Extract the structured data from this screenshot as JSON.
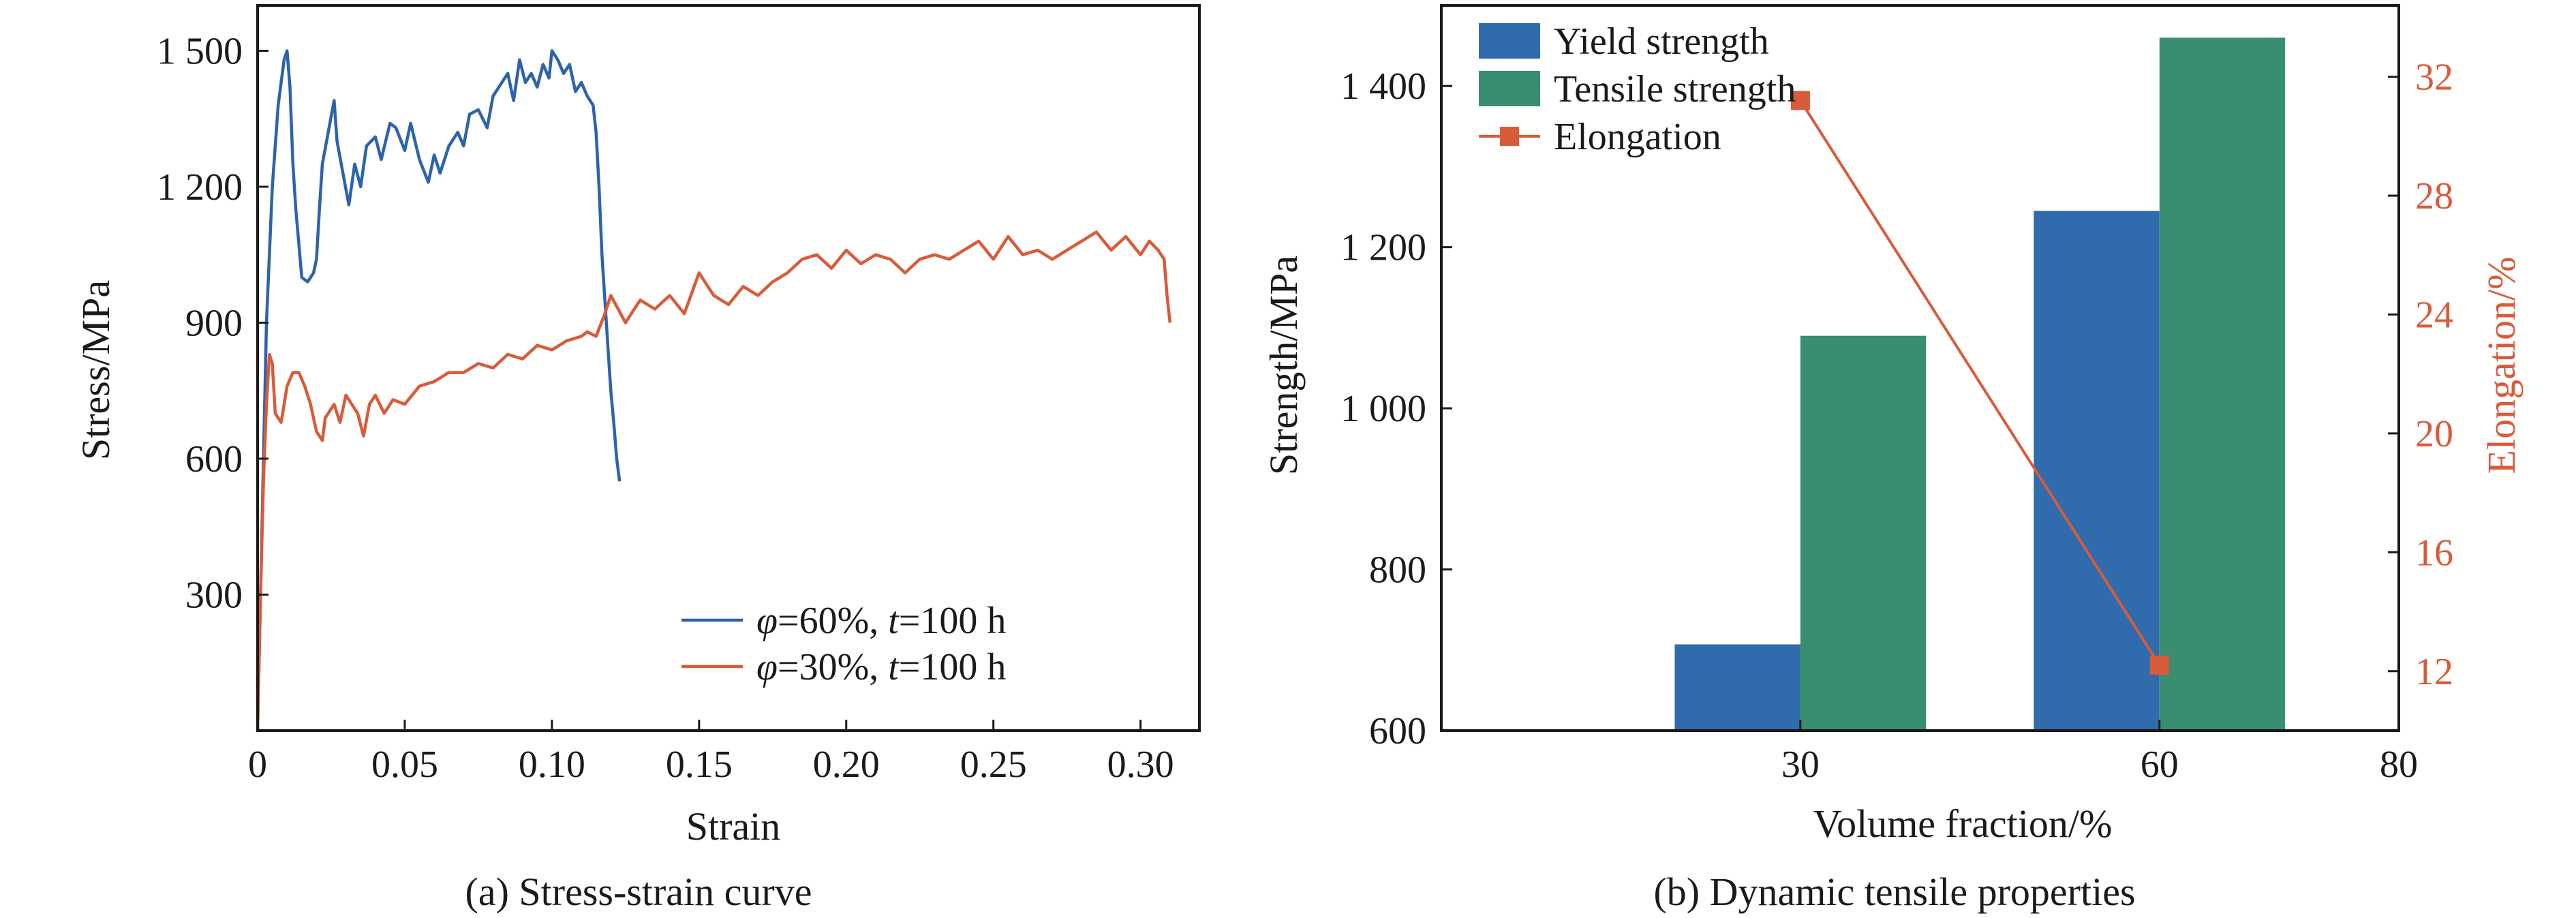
{
  "figure": {
    "background": "#ffffff",
    "axis_color": "#1a1a1a"
  },
  "chart_data": [
    {
      "type": "line",
      "caption": "(a) Stress-strain curve",
      "xlabel": "Strain",
      "ylabel": "Stress/MPa",
      "xlim": [
        0,
        0.32
      ],
      "ylim": [
        0,
        1600
      ],
      "xticks": [
        {
          "value": 0,
          "label": "0"
        },
        {
          "value": 0.05,
          "label": "0.05"
        },
        {
          "value": 0.1,
          "label": "0.10"
        },
        {
          "value": 0.15,
          "label": "0.15"
        },
        {
          "value": 0.2,
          "label": "0.20"
        },
        {
          "value": 0.25,
          "label": "0.25"
        },
        {
          "value": 0.3,
          "label": "0.30"
        }
      ],
      "yticks": [
        {
          "value": 300,
          "label": "300"
        },
        {
          "value": 600,
          "label": "600"
        },
        {
          "value": 900,
          "label": "900"
        },
        {
          "value": 1200,
          "label": "1 200"
        },
        {
          "value": 1500,
          "label": "1 500"
        }
      ],
      "grid": false,
      "legend_position": "bottom-right",
      "series": [
        {
          "legend_label": "φ=60%, t=100 h",
          "legend_parts": [
            {
              "text": "φ",
              "italic": true
            },
            {
              "text": "=60%, ",
              "italic": false
            },
            {
              "text": "t",
              "italic": true
            },
            {
              "text": "=100 h",
              "italic": false
            }
          ],
          "color": "#2e63aa",
          "x": [
            0,
            0.001,
            0.002,
            0.003,
            0.005,
            0.007,
            0.009,
            0.01,
            0.011,
            0.012,
            0.013,
            0.015,
            0.017,
            0.019,
            0.02,
            0.021,
            0.022,
            0.024,
            0.026,
            0.027,
            0.029,
            0.031,
            0.033,
            0.035,
            0.037,
            0.04,
            0.042,
            0.045,
            0.047,
            0.05,
            0.052,
            0.055,
            0.058,
            0.06,
            0.062,
            0.065,
            0.068,
            0.07,
            0.072,
            0.075,
            0.078,
            0.08,
            0.082,
            0.085,
            0.087,
            0.089,
            0.091,
            0.093,
            0.095,
            0.097,
            0.099,
            0.1,
            0.102,
            0.104,
            0.106,
            0.108,
            0.11,
            0.112,
            0.114,
            0.115,
            0.116,
            0.117,
            0.118,
            0.119,
            0.12,
            0.121,
            0.122,
            0.123
          ],
          "y": [
            0,
            300,
            600,
            900,
            1200,
            1380,
            1480,
            1500,
            1420,
            1250,
            1150,
            1000,
            990,
            1010,
            1040,
            1150,
            1250,
            1320,
            1390,
            1300,
            1230,
            1160,
            1250,
            1200,
            1290,
            1310,
            1260,
            1340,
            1330,
            1280,
            1340,
            1260,
            1210,
            1270,
            1230,
            1290,
            1320,
            1290,
            1360,
            1370,
            1330,
            1400,
            1420,
            1450,
            1390,
            1480,
            1430,
            1450,
            1420,
            1470,
            1440,
            1500,
            1480,
            1450,
            1470,
            1410,
            1430,
            1400,
            1380,
            1320,
            1200,
            1050,
            950,
            850,
            750,
            680,
            600,
            550
          ]
        },
        {
          "legend_label": "φ=30%, t=100 h",
          "legend_parts": [
            {
              "text": "φ",
              "italic": true
            },
            {
              "text": "=30%, ",
              "italic": false
            },
            {
              "text": "t",
              "italic": true
            },
            {
              "text": "=100 h",
              "italic": false
            }
          ],
          "color": "#d85b3a",
          "x": [
            0,
            0.001,
            0.002,
            0.003,
            0.004,
            0.005,
            0.006,
            0.008,
            0.01,
            0.012,
            0.014,
            0.016,
            0.018,
            0.02,
            0.022,
            0.023,
            0.024,
            0.026,
            0.028,
            0.03,
            0.032,
            0.034,
            0.036,
            0.038,
            0.04,
            0.043,
            0.046,
            0.05,
            0.055,
            0.06,
            0.065,
            0.07,
            0.075,
            0.08,
            0.085,
            0.09,
            0.095,
            0.1,
            0.105,
            0.11,
            0.112,
            0.115,
            0.118,
            0.12,
            0.125,
            0.13,
            0.135,
            0.14,
            0.145,
            0.15,
            0.155,
            0.16,
            0.165,
            0.17,
            0.175,
            0.18,
            0.185,
            0.19,
            0.195,
            0.2,
            0.205,
            0.21,
            0.215,
            0.22,
            0.225,
            0.23,
            0.235,
            0.24,
            0.245,
            0.25,
            0.255,
            0.26,
            0.265,
            0.27,
            0.275,
            0.28,
            0.285,
            0.29,
            0.295,
            0.3,
            0.303,
            0.306,
            0.308,
            0.309,
            0.31
          ],
          "y": [
            0,
            300,
            550,
            720,
            830,
            810,
            700,
            680,
            760,
            790,
            790,
            760,
            720,
            660,
            640,
            690,
            700,
            720,
            680,
            740,
            720,
            700,
            650,
            720,
            740,
            700,
            730,
            720,
            760,
            770,
            790,
            790,
            810,
            800,
            830,
            820,
            850,
            840,
            860,
            870,
            880,
            870,
            920,
            960,
            900,
            950,
            930,
            960,
            920,
            1010,
            960,
            940,
            980,
            960,
            990,
            1010,
            1040,
            1050,
            1020,
            1060,
            1030,
            1050,
            1040,
            1010,
            1040,
            1050,
            1040,
            1060,
            1080,
            1040,
            1090,
            1050,
            1060,
            1040,
            1060,
            1080,
            1100,
            1060,
            1090,
            1050,
            1080,
            1060,
            1040,
            960,
            900
          ]
        }
      ]
    },
    {
      "type": "bar",
      "caption": "(b) Dynamic tensile properties",
      "xlabel": "Volume fraction/%",
      "ylabel": "Strength/MPa",
      "y2label": "Elongation/%",
      "xlim": [
        0,
        80
      ],
      "ylim": [
        600,
        1500
      ],
      "y2lim": [
        10,
        34.4
      ],
      "xticks": [
        {
          "value": 30,
          "label": "30"
        },
        {
          "value": 60,
          "label": "60"
        },
        {
          "value": 80,
          "label": "80"
        }
      ],
      "yticks": [
        {
          "value": 600,
          "label": "600"
        },
        {
          "value": 800,
          "label": "800"
        },
        {
          "value": 1000,
          "label": "1 000"
        },
        {
          "value": 1200,
          "label": "1 200"
        },
        {
          "value": 1400,
          "label": "1 400"
        }
      ],
      "y2ticks": [
        {
          "value": 12,
          "label": "12"
        },
        {
          "value": 16,
          "label": "16"
        },
        {
          "value": 20,
          "label": "20"
        },
        {
          "value": 24,
          "label": "24"
        },
        {
          "value": 28,
          "label": "28"
        },
        {
          "value": 32,
          "label": "32"
        }
      ],
      "grid": false,
      "legend_position": "top-left",
      "categories": [
        30,
        60
      ],
      "bar_width_units": 10.5,
      "series": [
        {
          "name": "Yield strength",
          "kind": "bar",
          "axis": "left",
          "color": "#2f6bad",
          "values": [
            707,
            1245
          ]
        },
        {
          "name": "Tensile strength",
          "kind": "bar",
          "axis": "left",
          "color": "#388e6f",
          "values": [
            1090,
            1460
          ]
        },
        {
          "name": "Elongation",
          "kind": "line",
          "axis": "right",
          "color": "#d85b3a",
          "values": [
            31.2,
            12.2
          ]
        }
      ],
      "right_axis_color": "#d85b3a"
    }
  ]
}
